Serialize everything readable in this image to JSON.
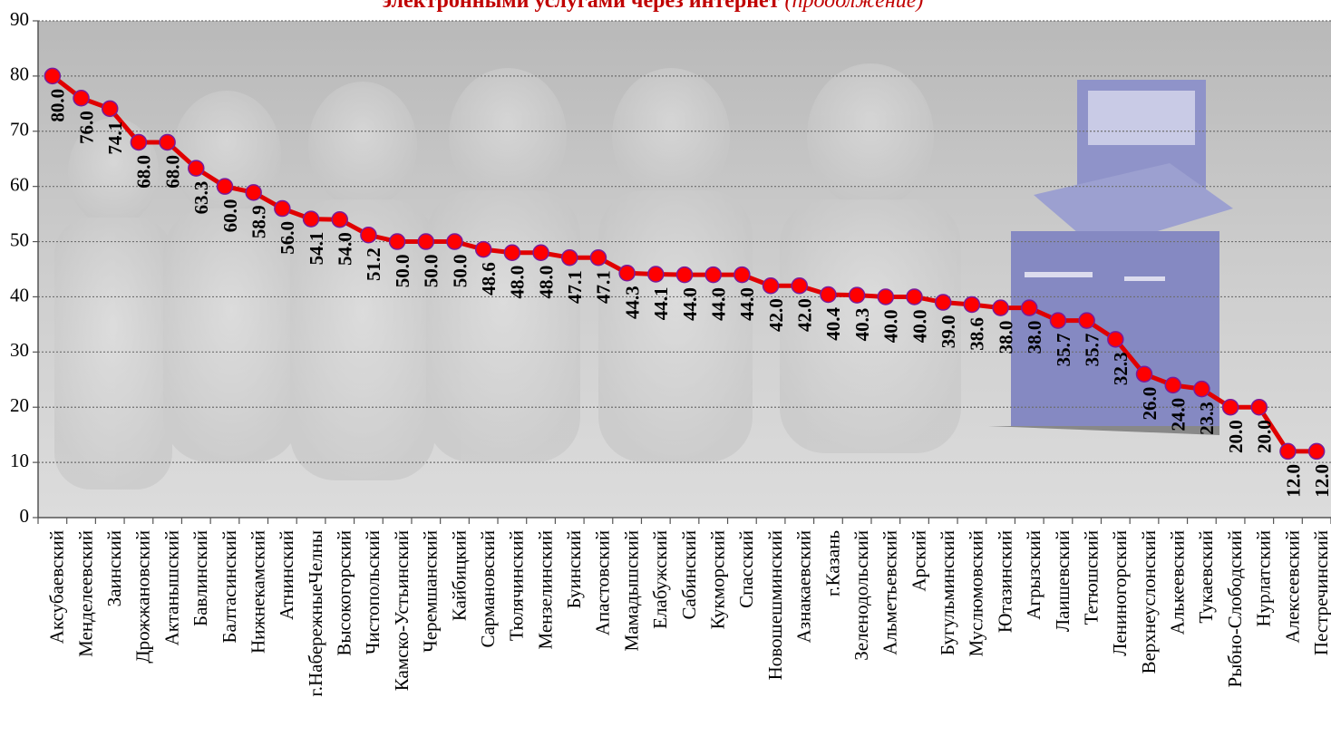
{
  "chart_data": {
    "type": "line",
    "title": "электронными услугами через интернет",
    "title_suffix": "(продолжение)",
    "ylim": [
      0,
      90
    ],
    "yticks": [
      0,
      10,
      20,
      30,
      40,
      50,
      60,
      70,
      80,
      90
    ],
    "grid": true,
    "line_color": "#e00000",
    "marker_color": "#ff0000",
    "categories": [
      "Аксубаевский",
      "Менделеевский",
      "Заинский",
      "Дрожжановский",
      "Актанышский",
      "Бавлинский",
      "Балтасинский",
      "Нижнекамский",
      "Атнинский",
      "г.НабережныеЧелны",
      "Высокогорский",
      "Чистопольский",
      "Камско-Устьинский",
      "Черемшанский",
      "Кайбицкий",
      "Сармановский",
      "Тюлячинский",
      "Мензелинский",
      "Буинский",
      "Апастовский",
      "Мамадышский",
      "Елабужский",
      "Сабинский",
      "Кукморский",
      "Спасский",
      "Новошешминский",
      "Азнакаевский",
      "г.Казань",
      "Зеленодольский",
      "Альметьевский",
      "Арский",
      "Бугульминский",
      "Муслюмовский",
      "Ютазинский",
      "Агрызский",
      "Лаишевский",
      "Тетюшский",
      "Лениногорский",
      "Верхнеуслонский",
      "Алькеевский",
      "Тукаевский",
      "Рыбно-Слободский",
      "Нурлатский",
      "Алексеевский",
      "Пестречинский"
    ],
    "values": [
      80.0,
      76.0,
      74.1,
      68.0,
      68.0,
      63.3,
      60.0,
      58.9,
      56.0,
      54.1,
      54.0,
      51.2,
      50.0,
      50.0,
      50.0,
      48.6,
      48.0,
      48.0,
      47.1,
      47.1,
      44.3,
      44.1,
      44.0,
      44.0,
      44.0,
      42.0,
      42.0,
      40.4,
      40.3,
      40.0,
      40.0,
      39.0,
      38.6,
      38.0,
      38.0,
      35.7,
      35.7,
      32.3,
      26.0,
      24.0,
      23.3,
      20.0,
      20.0,
      12.0,
      12.0
    ],
    "labels": [
      "80.0",
      "76.0",
      "74.1",
      "68.0",
      "68.0",
      "63.3",
      "60.0",
      "58.9",
      "56.0",
      "54.1",
      "54.0",
      "51.2",
      "50.0",
      "50.0",
      "50.0",
      "48.6",
      "48.0",
      "48.0",
      "47.1",
      "47.1",
      "44.3",
      "44.1",
      "44.0",
      "44.0",
      "44.0",
      "42.0",
      "42.0",
      "40.4",
      "40.3",
      "40.0",
      "40.0",
      "39.0",
      "38.6",
      "38.0",
      "38.0",
      "35.7",
      "35.7",
      "32.3",
      "26.0",
      "24.0",
      "23.3",
      "20.0",
      "20.0",
      "12.0",
      "12.0"
    ]
  }
}
